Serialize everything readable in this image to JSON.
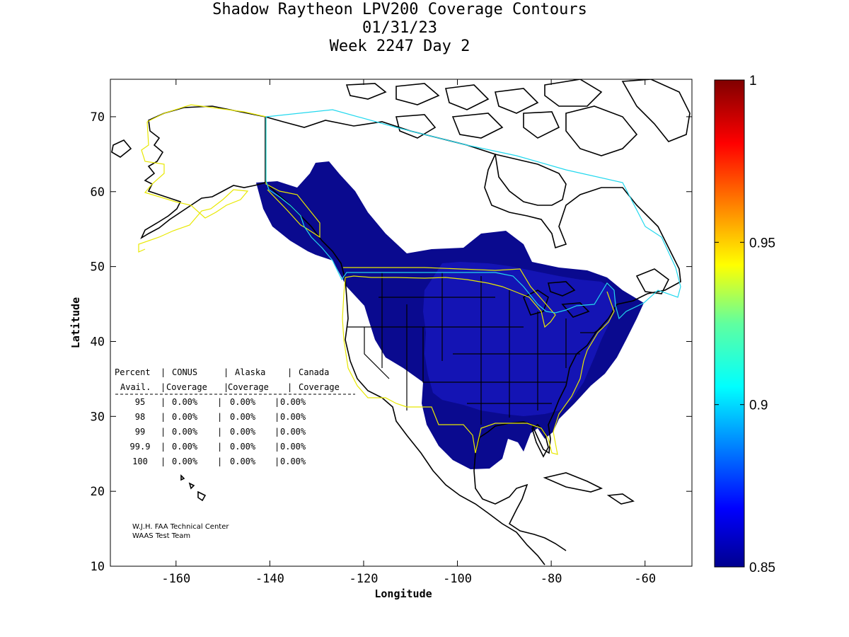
{
  "header": {
    "title": "Shadow Raytheon LPV200 Coverage Contours",
    "date": "01/31/23",
    "week_day": "Week 2247 Day 2"
  },
  "chart_data": {
    "type": "contour map",
    "title": "Shadow Raytheon LPV200 Coverage Contours",
    "xlabel": "Longitude",
    "ylabel": "Latitude",
    "xlim": [
      -174,
      -50
    ],
    "ylim": [
      10,
      75
    ],
    "xticks": [
      -160,
      -140,
      -120,
      -100,
      -80,
      -60
    ],
    "yticks": [
      10,
      20,
      30,
      40,
      50,
      60,
      70
    ],
    "colorbar": {
      "min": 0.85,
      "max": 1,
      "ticks": [
        0.85,
        0.9,
        0.95,
        1
      ]
    },
    "table": {
      "header1": [
        "Percent",
        "CONUS",
        "Alaska",
        "Canada"
      ],
      "header2": [
        "Avail.",
        "Coverage",
        "Coverage",
        "Coverage"
      ],
      "rows": [
        [
          "95",
          "0.00%",
          "0.00%",
          "0.00%"
        ],
        [
          "98",
          "0.00%",
          "0.00%",
          "0.00%"
        ],
        [
          "99",
          "0.00%",
          "0.00%",
          "0.00%"
        ],
        [
          "99.9",
          "0.00%",
          "0.00%",
          "0.00%"
        ],
        [
          "100",
          "0.00%",
          "0.00%",
          "0.00%"
        ]
      ]
    },
    "credits": [
      "W.J.H. FAA Technical Center",
      "WAAS Test Team"
    ]
  },
  "colors": {
    "coverage_dark": "#0a0a8f",
    "coverage_mid": "#1414b4",
    "boundary_yellow": "#e8e800",
    "boundary_cyan": "#22d8ee",
    "land_outline": "#000000"
  }
}
